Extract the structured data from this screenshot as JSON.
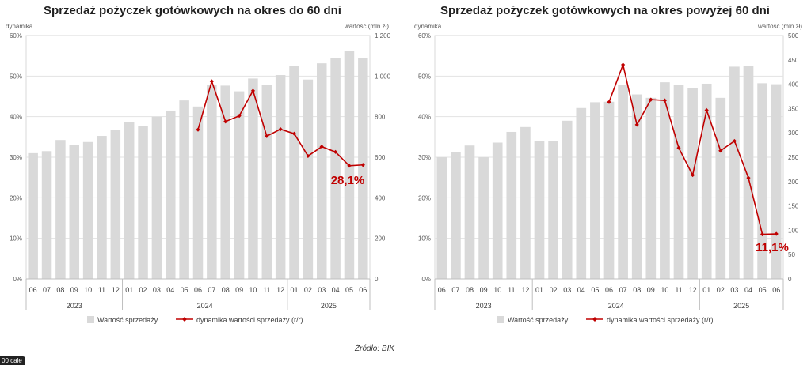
{
  "chart_data": [
    {
      "type": "bar",
      "title": "Sprzedaż pożyczek gotówkowych na okres do 60 dni",
      "ylabel": "dynamika",
      "y2label": "wartość (mln zł)",
      "ylim": [
        0,
        60
      ],
      "y2lim": [
        0,
        1200
      ],
      "yticks": [
        "0%",
        "10%",
        "20%",
        "30%",
        "40%",
        "50%",
        "60%"
      ],
      "y2ticks": [
        "0",
        "200",
        "400",
        "600",
        "800",
        "1 000",
        "1 200"
      ],
      "categories": [
        "06",
        "07",
        "08",
        "09",
        "10",
        "11",
        "12",
        "01",
        "02",
        "03",
        "04",
        "05",
        "06",
        "07",
        "08",
        "09",
        "10",
        "11",
        "12",
        "01",
        "02",
        "03",
        "04",
        "05",
        "06"
      ],
      "years": [
        {
          "label": "2023",
          "start": 0,
          "end": 6
        },
        {
          "label": "2024",
          "start": 7,
          "end": 18
        },
        {
          "label": "2025",
          "start": 19,
          "end": 24
        }
      ],
      "grid": true,
      "legend_position": "bottom",
      "series": [
        {
          "name": "Wartość sprzedaży",
          "type": "bar",
          "axis": "right",
          "color": "#d9d9d9",
          "values": [
            620,
            630,
            685,
            660,
            675,
            705,
            733,
            773,
            755,
            800,
            830,
            880,
            850,
            955,
            953,
            925,
            988,
            955,
            1005,
            1050,
            983,
            1063,
            1088,
            1125,
            1090
          ]
        },
        {
          "name": "dynamika wartości sprzedaży (r/r)",
          "type": "line",
          "axis": "left",
          "color": "#c00000",
          "values": [
            null,
            null,
            null,
            null,
            null,
            null,
            null,
            null,
            null,
            null,
            null,
            null,
            36.8,
            48.7,
            38.8,
            40.2,
            46.4,
            35.2,
            36.9,
            35.8,
            30.3,
            32.6,
            31.3,
            27.9,
            28.1
          ]
        }
      ],
      "annotation": {
        "text": "28,1%",
        "color": "#c00000"
      }
    },
    {
      "type": "bar",
      "title": "Sprzedaż pożyczek gotówkowych na okres powyżej 60 dni",
      "ylabel": "dynamika",
      "y2label": "wartość (mln zł)",
      "ylim": [
        0,
        60
      ],
      "y2lim": [
        0,
        500
      ],
      "yticks": [
        "0%",
        "10%",
        "20%",
        "30%",
        "40%",
        "50%",
        "60%"
      ],
      "y2ticks": [
        "0",
        "50",
        "100",
        "150",
        "200",
        "250",
        "300",
        "350",
        "400",
        "450",
        "500"
      ],
      "categories": [
        "06",
        "07",
        "08",
        "09",
        "10",
        "11",
        "12",
        "01",
        "02",
        "03",
        "04",
        "05",
        "06",
        "07",
        "08",
        "09",
        "10",
        "11",
        "12",
        "01",
        "02",
        "03",
        "04",
        "05",
        "06"
      ],
      "years": [
        {
          "label": "2023",
          "start": 0,
          "end": 6
        },
        {
          "label": "2024",
          "start": 7,
          "end": 18
        },
        {
          "label": "2025",
          "start": 19,
          "end": 24
        }
      ],
      "grid": true,
      "legend_position": "bottom",
      "series": [
        {
          "name": "Wartość sprzedaży",
          "type": "bar",
          "axis": "right",
          "color": "#d9d9d9",
          "values": [
            250,
            260,
            274,
            250,
            280,
            302,
            312,
            284,
            284,
            325,
            351,
            363,
            364,
            399,
            379,
            372,
            404,
            399,
            392,
            401,
            372,
            436,
            438,
            402,
            400
          ]
        },
        {
          "name": "dynamika wartości sprzedaży (r/r)",
          "type": "line",
          "axis": "left",
          "color": "#c00000",
          "values": [
            null,
            null,
            null,
            null,
            null,
            null,
            null,
            null,
            null,
            null,
            null,
            null,
            43.6,
            52.8,
            38.0,
            44.2,
            44.0,
            32.3,
            25.6,
            41.6,
            31.6,
            34.0,
            24.9,
            11.0,
            11.1
          ]
        }
      ],
      "annotation": {
        "text": "11,1%",
        "color": "#c00000"
      }
    }
  ],
  "source": "Źródło: BIK",
  "corner_tag": "00 cale"
}
